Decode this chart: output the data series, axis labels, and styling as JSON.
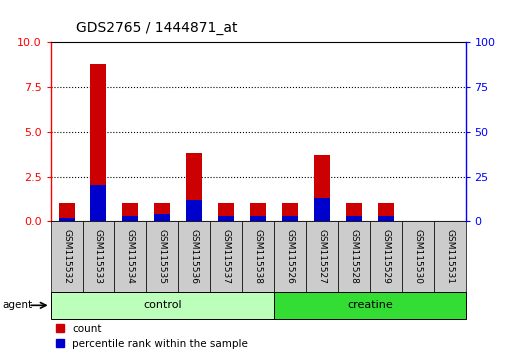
{
  "title": "GDS2765 / 1444871_at",
  "samples": [
    "GSM115532",
    "GSM115533",
    "GSM115534",
    "GSM115535",
    "GSM115536",
    "GSM115537",
    "GSM115538",
    "GSM115526",
    "GSM115527",
    "GSM115528",
    "GSM115529",
    "GSM115530",
    "GSM115531"
  ],
  "count_values": [
    1.0,
    8.8,
    1.0,
    1.0,
    3.8,
    1.0,
    1.0,
    1.0,
    3.7,
    1.0,
    1.0,
    0.0,
    0.0
  ],
  "percentile_values": [
    2.0,
    20.0,
    3.0,
    4.0,
    12.0,
    3.0,
    3.0,
    3.0,
    13.0,
    3.0,
    3.0,
    0.0,
    0.0
  ],
  "groups": [
    {
      "label": "control",
      "start": 0,
      "end": 7,
      "color": "#bbffbb"
    },
    {
      "label": "creatine",
      "start": 7,
      "end": 13,
      "color": "#33dd33"
    }
  ],
  "group_row_label": "agent",
  "ylim_left": [
    0,
    10
  ],
  "ylim_right": [
    0,
    100
  ],
  "yticks_left": [
    0,
    2.5,
    5.0,
    7.5,
    10
  ],
  "yticks_right": [
    0,
    25,
    50,
    75,
    100
  ],
  "count_color": "#cc0000",
  "percentile_color": "#0000cc",
  "bg_color": "#ffffff",
  "cell_color": "#cccccc",
  "legend_count_label": "count",
  "legend_percentile_label": "percentile rank within the sample",
  "title_fontsize": 10,
  "tick_label_fontsize": 6.5,
  "axis_tick_fontsize": 8
}
